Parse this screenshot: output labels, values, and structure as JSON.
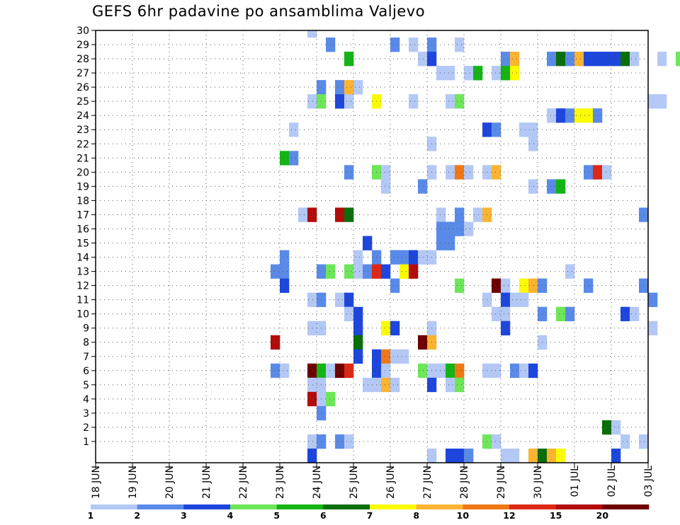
{
  "chart_data": {
    "type": "heatmap",
    "title": "GEFS 6hr padavine po ansamblima Valjevo",
    "xlabel": "",
    "ylabel": "",
    "x_ticks": [
      "18 JUN",
      "19 JUN",
      "20 JUN",
      "21 JUN",
      "22 JUN",
      "23 JUN",
      "24 JUN",
      "25 JUN",
      "26 JUN",
      "27 JUN",
      "28 JUN",
      "29 JUN",
      "30 JUN",
      "01 JUL",
      "02 JUL",
      "03 JUL"
    ],
    "x_range_days": [
      0,
      15
    ],
    "steps_per_day": 4,
    "y_range": [
      0,
      30
    ],
    "y_ticks": [
      1,
      2,
      3,
      4,
      5,
      6,
      7,
      8,
      9,
      10,
      11,
      12,
      13,
      14,
      15,
      16,
      17,
      18,
      19,
      20,
      21,
      22,
      23,
      24,
      25,
      26,
      27,
      28,
      29,
      30
    ],
    "grid": "dotted",
    "legend": {
      "position": "bottom",
      "colors": [
        "#b4c8f5",
        "#5a8ae8",
        "#1e46dc",
        "#6ee65a",
        "#14b414",
        "#0a6e0a",
        "#fafa00",
        "#fab432",
        "#f07814",
        "#dc2814",
        "#b40a0a",
        "#6e0000"
      ],
      "labels": [
        "1",
        "2",
        "3",
        "4",
        "5",
        "6",
        "7",
        "8",
        "10",
        "12",
        "15",
        "20"
      ]
    },
    "cells_format": "[time_step, member, class_index]",
    "cells": [
      [
        23,
        30,
        1
      ],
      [
        25,
        29,
        2
      ],
      [
        32,
        29,
        2
      ],
      [
        34,
        29,
        1
      ],
      [
        36,
        29,
        2
      ],
      [
        39,
        29,
        1
      ],
      [
        27,
        28,
        5
      ],
      [
        35,
        28,
        1
      ],
      [
        36,
        28,
        3
      ],
      [
        44,
        28,
        2
      ],
      [
        45,
        28,
        8
      ],
      [
        49,
        28,
        2
      ],
      [
        50,
        28,
        6
      ],
      [
        51,
        28,
        2
      ],
      [
        52,
        28,
        8
      ],
      [
        53,
        28,
        3
      ],
      [
        54,
        28,
        3
      ],
      [
        55,
        28,
        3
      ],
      [
        56,
        28,
        3
      ],
      [
        57,
        28,
        6
      ],
      [
        58,
        28,
        1
      ],
      [
        61,
        28,
        1
      ],
      [
        63,
        28,
        4
      ],
      [
        64,
        28,
        2
      ],
      [
        65,
        28,
        5
      ],
      [
        66,
        28,
        2
      ],
      [
        67,
        28,
        1
      ],
      [
        37,
        27,
        1
      ],
      [
        38,
        27,
        1
      ],
      [
        40,
        27,
        1
      ],
      [
        41,
        27,
        5
      ],
      [
        43,
        27,
        1
      ],
      [
        44,
        27,
        5
      ],
      [
        45,
        27,
        7
      ],
      [
        24,
        26,
        2
      ],
      [
        26,
        26,
        2
      ],
      [
        27,
        26,
        8
      ],
      [
        28,
        26,
        1
      ],
      [
        23,
        25,
        1
      ],
      [
        24,
        25,
        4
      ],
      [
        26,
        25,
        3
      ],
      [
        27,
        25,
        1
      ],
      [
        30,
        25,
        7
      ],
      [
        34,
        25,
        1
      ],
      [
        38,
        25,
        1
      ],
      [
        39,
        25,
        4
      ],
      [
        60,
        25,
        1
      ],
      [
        61,
        25,
        1
      ],
      [
        49,
        24,
        1
      ],
      [
        50,
        24,
        3
      ],
      [
        51,
        24,
        2
      ],
      [
        52,
        24,
        7
      ],
      [
        53,
        24,
        7
      ],
      [
        54,
        24,
        2
      ],
      [
        21,
        23,
        1
      ],
      [
        42,
        23,
        3
      ],
      [
        43,
        23,
        2
      ],
      [
        46,
        23,
        1
      ],
      [
        47,
        23,
        1
      ],
      [
        36,
        22,
        1
      ],
      [
        47,
        22,
        1
      ],
      [
        20,
        21,
        5
      ],
      [
        21,
        21,
        2
      ],
      [
        27,
        20,
        2
      ],
      [
        30,
        20,
        4
      ],
      [
        31,
        20,
        1
      ],
      [
        36,
        20,
        1
      ],
      [
        38,
        20,
        1
      ],
      [
        39,
        20,
        9
      ],
      [
        40,
        20,
        1
      ],
      [
        42,
        20,
        1
      ],
      [
        43,
        20,
        8
      ],
      [
        53,
        20,
        2
      ],
      [
        54,
        20,
        10
      ],
      [
        55,
        20,
        1
      ],
      [
        31,
        19,
        1
      ],
      [
        35,
        19,
        2
      ],
      [
        47,
        19,
        1
      ],
      [
        49,
        19,
        2
      ],
      [
        50,
        19,
        5
      ],
      [
        22,
        17,
        1
      ],
      [
        23,
        17,
        11
      ],
      [
        26,
        17,
        11
      ],
      [
        27,
        17,
        6
      ],
      [
        37,
        17,
        1
      ],
      [
        39,
        17,
        2
      ],
      [
        41,
        17,
        1
      ],
      [
        42,
        17,
        8
      ],
      [
        59,
        17,
        2
      ],
      [
        37,
        16,
        2
      ],
      [
        38,
        16,
        2
      ],
      [
        39,
        16,
        2
      ],
      [
        40,
        16,
        1
      ],
      [
        29,
        15,
        3
      ],
      [
        37,
        15,
        2
      ],
      [
        38,
        15,
        2
      ],
      [
        20,
        14,
        2
      ],
      [
        28,
        14,
        1
      ],
      [
        30,
        14,
        2
      ],
      [
        32,
        14,
        2
      ],
      [
        33,
        14,
        2
      ],
      [
        34,
        14,
        3
      ],
      [
        35,
        14,
        1
      ],
      [
        36,
        14,
        1
      ],
      [
        19,
        13,
        2
      ],
      [
        20,
        13,
        2
      ],
      [
        24,
        13,
        2
      ],
      [
        25,
        13,
        4
      ],
      [
        27,
        13,
        4
      ],
      [
        28,
        13,
        1
      ],
      [
        29,
        13,
        2
      ],
      [
        30,
        13,
        10
      ],
      [
        31,
        13,
        3
      ],
      [
        33,
        13,
        7
      ],
      [
        34,
        13,
        11
      ],
      [
        51,
        13,
        1
      ],
      [
        20,
        12,
        3
      ],
      [
        32,
        12,
        2
      ],
      [
        39,
        12,
        4
      ],
      [
        43,
        12,
        12
      ],
      [
        44,
        12,
        1
      ],
      [
        46,
        12,
        7
      ],
      [
        47,
        12,
        8
      ],
      [
        48,
        12,
        2
      ],
      [
        53,
        12,
        2
      ],
      [
        59,
        12,
        2
      ],
      [
        23,
        11,
        1
      ],
      [
        24,
        11,
        2
      ],
      [
        26,
        11,
        1
      ],
      [
        27,
        11,
        3
      ],
      [
        42,
        11,
        1
      ],
      [
        44,
        11,
        3
      ],
      [
        45,
        11,
        1
      ],
      [
        46,
        11,
        1
      ],
      [
        60,
        11,
        2
      ],
      [
        27,
        10,
        1
      ],
      [
        28,
        10,
        3
      ],
      [
        43,
        10,
        1
      ],
      [
        44,
        10,
        1
      ],
      [
        48,
        10,
        2
      ],
      [
        50,
        10,
        4
      ],
      [
        51,
        10,
        2
      ],
      [
        57,
        10,
        3
      ],
      [
        58,
        10,
        1
      ],
      [
        23,
        9,
        1
      ],
      [
        24,
        9,
        1
      ],
      [
        28,
        9,
        3
      ],
      [
        31,
        9,
        7
      ],
      [
        32,
        9,
        3
      ],
      [
        36,
        9,
        1
      ],
      [
        44,
        9,
        3
      ],
      [
        60,
        9,
        1
      ],
      [
        19,
        8,
        11
      ],
      [
        28,
        8,
        6
      ],
      [
        35,
        8,
        12
      ],
      [
        36,
        8,
        8
      ],
      [
        48,
        8,
        1
      ],
      [
        28,
        7,
        3
      ],
      [
        30,
        7,
        3
      ],
      [
        31,
        7,
        9
      ],
      [
        32,
        7,
        1
      ],
      [
        33,
        7,
        1
      ],
      [
        19,
        6,
        2
      ],
      [
        20,
        6,
        1
      ],
      [
        23,
        6,
        12
      ],
      [
        24,
        6,
        5
      ],
      [
        25,
        6,
        1
      ],
      [
        26,
        6,
        12
      ],
      [
        27,
        6,
        10
      ],
      [
        30,
        6,
        3
      ],
      [
        31,
        6,
        1
      ],
      [
        35,
        6,
        4
      ],
      [
        36,
        6,
        1
      ],
      [
        37,
        6,
        1
      ],
      [
        38,
        6,
        5
      ],
      [
        39,
        6,
        9
      ],
      [
        42,
        6,
        1
      ],
      [
        43,
        6,
        1
      ],
      [
        45,
        6,
        2
      ],
      [
        46,
        6,
        1
      ],
      [
        47,
        6,
        3
      ],
      [
        23,
        5,
        1
      ],
      [
        24,
        5,
        1
      ],
      [
        29,
        5,
        1
      ],
      [
        30,
        5,
        1
      ],
      [
        31,
        5,
        8
      ],
      [
        32,
        5,
        1
      ],
      [
        36,
        5,
        3
      ],
      [
        38,
        5,
        1
      ],
      [
        39,
        5,
        4
      ],
      [
        23,
        4,
        11
      ],
      [
        24,
        4,
        1
      ],
      [
        25,
        4,
        4
      ],
      [
        24,
        3,
        2
      ],
      [
        55,
        2,
        6
      ],
      [
        56,
        2,
        1
      ],
      [
        23,
        1,
        1
      ],
      [
        24,
        1,
        2
      ],
      [
        26,
        1,
        2
      ],
      [
        27,
        1,
        1
      ],
      [
        42,
        1,
        4
      ],
      [
        43,
        1,
        1
      ],
      [
        57,
        1,
        1
      ],
      [
        59,
        1,
        1
      ],
      [
        23,
        0,
        3
      ],
      [
        36,
        0,
        1
      ],
      [
        38,
        0,
        3
      ],
      [
        39,
        0,
        3
      ],
      [
        40,
        0,
        2
      ],
      [
        44,
        0,
        1
      ],
      [
        45,
        0,
        1
      ],
      [
        47,
        0,
        8
      ],
      [
        48,
        0,
        6
      ],
      [
        49,
        0,
        8
      ],
      [
        50,
        0,
        7
      ],
      [
        56,
        0,
        3
      ]
    ]
  }
}
